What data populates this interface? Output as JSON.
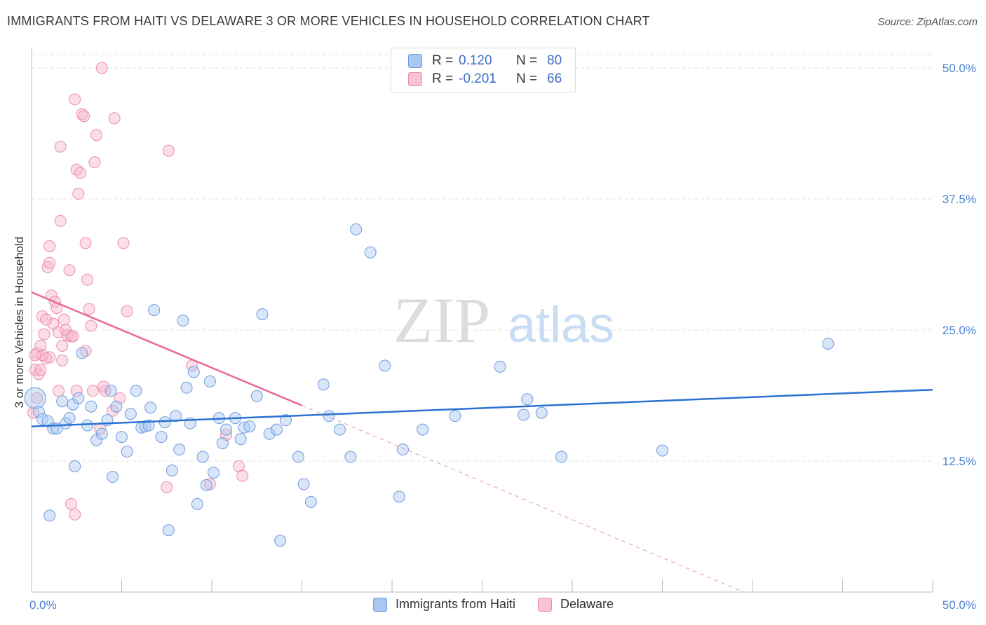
{
  "title": "IMMIGRANTS FROM HAITI VS DELAWARE 3 OR MORE VEHICLES IN HOUSEHOLD CORRELATION CHART",
  "source": "Source: ZipAtlas.com",
  "watermark": {
    "zip": "ZIP",
    "atlas": "atlas"
  },
  "legend": {
    "rows": [
      {
        "r_label": "R =",
        "r_value": "0.120",
        "n_label": "N =",
        "n_value": "80"
      },
      {
        "r_label": "R =",
        "r_value": "-0.201",
        "n_label": "N =",
        "n_value": "66"
      }
    ]
  },
  "bottom_legend": [
    "Immigrants from Haiti",
    "Delaware"
  ],
  "colors": {
    "blue_fill": "#a9c7f0",
    "blue_stroke": "#6f9be0",
    "blue_line": "#2b72d0",
    "pink_fill": "#f7b6ca",
    "pink_stroke": "#ec8eab",
    "pink_line": "#e66a93",
    "tick_text": "#4a7fd0",
    "grid": "#e3e3e3"
  },
  "chart_data": {
    "type": "scatter",
    "title": "IMMIGRANTS FROM HAITI VS DELAWARE 3 OR MORE VEHICLES IN HOUSEHOLD CORRELATION CHART",
    "xlabel": "",
    "ylabel": "3 or more Vehicles in Household",
    "xlim": [
      0,
      50
    ],
    "ylim": [
      0,
      50
    ],
    "x_tick_labels": [
      "0.0%",
      "50.0%"
    ],
    "y_tick_labels": [
      "12.5%",
      "25.0%",
      "37.5%",
      "50.0%"
    ],
    "y_ticks": [
      12.5,
      25.0,
      37.5,
      50.0
    ],
    "grid": true,
    "legend_position": "top-center",
    "series": [
      {
        "name": "Immigrants from Haiti",
        "color": "#a9c7f0",
        "trend": {
          "x": [
            0,
            50
          ],
          "y": [
            15.8,
            19.3
          ],
          "style": "solid"
        },
        "points": [
          [
            0.2,
            18.5
          ],
          [
            0.4,
            17.2
          ],
          [
            0.6,
            16.5
          ],
          [
            0.9,
            16.3
          ],
          [
            1.2,
            15.6
          ],
          [
            1.4,
            15.6
          ],
          [
            1.7,
            18.2
          ],
          [
            1.9,
            16.1
          ],
          [
            2.1,
            16.6
          ],
          [
            2.3,
            17.9
          ],
          [
            2.6,
            18.5
          ],
          [
            2.8,
            22.8
          ],
          [
            3.1,
            15.9
          ],
          [
            3.3,
            17.7
          ],
          [
            3.6,
            14.5
          ],
          [
            3.9,
            15.1
          ],
          [
            4.2,
            16.4
          ],
          [
            4.4,
            19.2
          ],
          [
            4.7,
            17.7
          ],
          [
            5.0,
            14.8
          ],
          [
            5.3,
            13.4
          ],
          [
            5.5,
            17.0
          ],
          [
            5.8,
            19.2
          ],
          [
            6.1,
            15.7
          ],
          [
            6.3,
            15.8
          ],
          [
            6.5,
            15.9
          ],
          [
            6.6,
            17.6
          ],
          [
            6.8,
            26.9
          ],
          [
            7.2,
            14.8
          ],
          [
            7.4,
            16.2
          ],
          [
            7.6,
            5.9
          ],
          [
            7.8,
            11.6
          ],
          [
            8.0,
            16.8
          ],
          [
            8.2,
            13.6
          ],
          [
            8.4,
            25.9
          ],
          [
            8.6,
            19.5
          ],
          [
            8.8,
            16.1
          ],
          [
            9.0,
            21.0
          ],
          [
            9.2,
            8.4
          ],
          [
            9.5,
            12.9
          ],
          [
            9.7,
            10.2
          ],
          [
            9.9,
            20.1
          ],
          [
            10.1,
            11.4
          ],
          [
            10.4,
            16.6
          ],
          [
            10.6,
            14.2
          ],
          [
            10.8,
            15.5
          ],
          [
            11.3,
            16.6
          ],
          [
            11.6,
            14.6
          ],
          [
            11.8,
            15.7
          ],
          [
            12.1,
            15.8
          ],
          [
            12.5,
            18.7
          ],
          [
            12.8,
            26.5
          ],
          [
            13.2,
            15.1
          ],
          [
            13.6,
            15.5
          ],
          [
            13.8,
            4.9
          ],
          [
            14.1,
            16.4
          ],
          [
            14.8,
            12.9
          ],
          [
            15.1,
            10.3
          ],
          [
            15.5,
            8.6
          ],
          [
            16.2,
            19.8
          ],
          [
            16.5,
            16.8
          ],
          [
            17.1,
            15.5
          ],
          [
            17.7,
            12.9
          ],
          [
            18.0,
            34.6
          ],
          [
            18.8,
            32.4
          ],
          [
            19.6,
            21.6
          ],
          [
            20.4,
            9.1
          ],
          [
            20.6,
            13.6
          ],
          [
            21.7,
            15.5
          ],
          [
            23.5,
            16.8
          ],
          [
            26.0,
            21.5
          ],
          [
            27.3,
            16.9
          ],
          [
            27.5,
            18.4
          ],
          [
            28.3,
            17.1
          ],
          [
            29.4,
            12.9
          ],
          [
            35.0,
            13.5
          ],
          [
            44.2,
            23.7
          ],
          [
            1.0,
            7.3
          ],
          [
            2.4,
            12.0
          ],
          [
            4.5,
            11.0
          ]
        ]
      },
      {
        "name": "Delaware",
        "color": "#f7b6ca",
        "trend": {
          "x": [
            0,
            15
          ],
          "y": [
            28.6,
            17.8
          ],
          "style": "solid",
          "extension": {
            "x": [
              15,
              39.5
            ],
            "y": [
              17.8,
              0
            ]
          }
        },
        "points": [
          [
            0.1,
            17.1
          ],
          [
            0.2,
            21.2
          ],
          [
            0.3,
            22.8
          ],
          [
            0.4,
            20.8
          ],
          [
            0.5,
            23.5
          ],
          [
            0.6,
            26.3
          ],
          [
            0.7,
            24.6
          ],
          [
            0.8,
            22.3
          ],
          [
            0.9,
            31.0
          ],
          [
            1.0,
            31.4
          ],
          [
            1.1,
            28.3
          ],
          [
            1.2,
            25.6
          ],
          [
            1.3,
            27.7
          ],
          [
            1.4,
            27.1
          ],
          [
            1.5,
            24.8
          ],
          [
            1.6,
            35.4
          ],
          [
            1.7,
            23.5
          ],
          [
            1.8,
            26.0
          ],
          [
            1.9,
            25.0
          ],
          [
            2.0,
            24.5
          ],
          [
            2.1,
            30.7
          ],
          [
            2.2,
            24.4
          ],
          [
            2.3,
            24.4
          ],
          [
            2.4,
            47.0
          ],
          [
            2.5,
            40.3
          ],
          [
            2.6,
            38.0
          ],
          [
            2.7,
            40.0
          ],
          [
            2.8,
            45.6
          ],
          [
            2.9,
            45.4
          ],
          [
            3.0,
            33.3
          ],
          [
            3.1,
            29.8
          ],
          [
            3.2,
            27.0
          ],
          [
            3.3,
            25.4
          ],
          [
            3.4,
            19.2
          ],
          [
            3.5,
            41.0
          ],
          [
            3.6,
            43.6
          ],
          [
            3.8,
            15.6
          ],
          [
            3.9,
            50.0
          ],
          [
            4.1,
            19.2
          ],
          [
            4.5,
            17.3
          ],
          [
            4.6,
            45.2
          ],
          [
            4.9,
            18.5
          ],
          [
            5.1,
            33.3
          ],
          [
            5.3,
            26.8
          ],
          [
            7.5,
            10.0
          ],
          [
            7.6,
            42.1
          ],
          [
            8.9,
            21.6
          ],
          [
            9.9,
            10.3
          ],
          [
            10.8,
            15.0
          ],
          [
            11.5,
            12.0
          ],
          [
            11.7,
            11.1
          ],
          [
            1.6,
            42.5
          ],
          [
            1.0,
            22.4
          ],
          [
            0.6,
            22.6
          ],
          [
            1.5,
            19.2
          ],
          [
            0.2,
            22.6
          ],
          [
            0.3,
            18.5
          ],
          [
            1.7,
            22.1
          ],
          [
            2.2,
            8.4
          ],
          [
            2.4,
            7.4
          ],
          [
            0.8,
            26.0
          ],
          [
            3.0,
            23.0
          ],
          [
            1.0,
            33.0
          ],
          [
            2.5,
            19.2
          ],
          [
            4.0,
            19.6
          ],
          [
            0.5,
            21.2
          ]
        ]
      }
    ]
  }
}
